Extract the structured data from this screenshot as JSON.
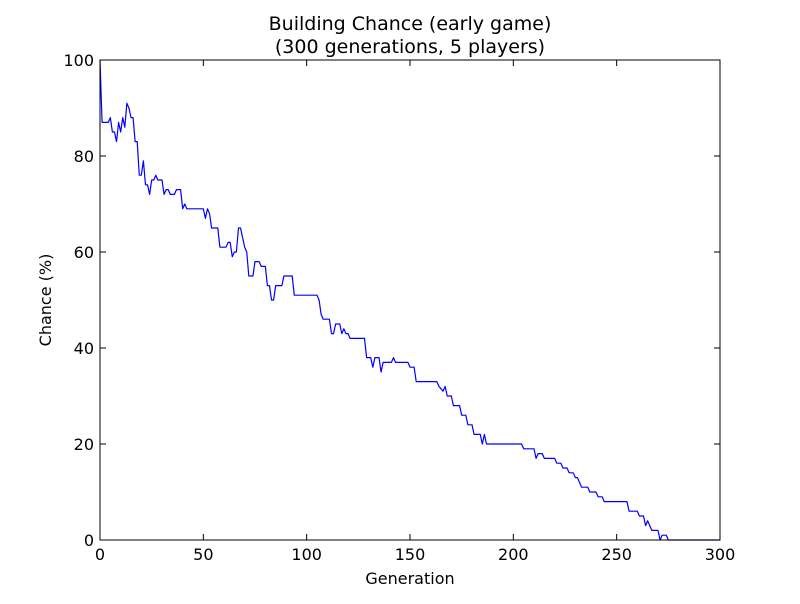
{
  "chart_data": {
    "type": "line",
    "title": "Building Chance (early game)",
    "subtitle": "(300 generations, 5 players)",
    "xlabel": "Generation",
    "ylabel": "Chance (%)",
    "xlim": [
      0,
      300
    ],
    "ylim": [
      0,
      100
    ],
    "xticks": [
      0,
      50,
      100,
      150,
      200,
      250,
      300
    ],
    "yticks": [
      0,
      20,
      40,
      60,
      80,
      100
    ],
    "grid": false,
    "legend": "none",
    "line_color": "#0000ff",
    "series": [
      {
        "points": [
          [
            0,
            100
          ],
          [
            1,
            87
          ],
          [
            4,
            87
          ],
          [
            5,
            88
          ],
          [
            6,
            85
          ],
          [
            7,
            85
          ],
          [
            8,
            83
          ],
          [
            9,
            87
          ],
          [
            10,
            85
          ],
          [
            11,
            88
          ],
          [
            12,
            86
          ],
          [
            13,
            91
          ],
          [
            14,
            90
          ],
          [
            15,
            88
          ],
          [
            16,
            88
          ],
          [
            17,
            83
          ],
          [
            18,
            83
          ],
          [
            19,
            76
          ],
          [
            20,
            76
          ],
          [
            21,
            79
          ],
          [
            22,
            74
          ],
          [
            23,
            74
          ],
          [
            24,
            72
          ],
          [
            25,
            75
          ],
          [
            26,
            75
          ],
          [
            27,
            76
          ],
          [
            28,
            75
          ],
          [
            30,
            75
          ],
          [
            31,
            72
          ],
          [
            32,
            73
          ],
          [
            33,
            73
          ],
          [
            34,
            72
          ],
          [
            36,
            72
          ],
          [
            37,
            73
          ],
          [
            39,
            73
          ],
          [
            40,
            69
          ],
          [
            41,
            70
          ],
          [
            42,
            69
          ],
          [
            50,
            69
          ],
          [
            51,
            67
          ],
          [
            52,
            69
          ],
          [
            53,
            68
          ],
          [
            54,
            65
          ],
          [
            57,
            65
          ],
          [
            58,
            61
          ],
          [
            61,
            61
          ],
          [
            62,
            62
          ],
          [
            63,
            62
          ],
          [
            64,
            59
          ],
          [
            65,
            60
          ],
          [
            66,
            60
          ],
          [
            67,
            65
          ],
          [
            68,
            65
          ],
          [
            69,
            63
          ],
          [
            70,
            61
          ],
          [
            71,
            60
          ],
          [
            72,
            55
          ],
          [
            74,
            55
          ],
          [
            75,
            58
          ],
          [
            77,
            58
          ],
          [
            78,
            57
          ],
          [
            80,
            57
          ],
          [
            81,
            53
          ],
          [
            82,
            53
          ],
          [
            83,
            50
          ],
          [
            84,
            50
          ],
          [
            85,
            53
          ],
          [
            88,
            53
          ],
          [
            89,
            55
          ],
          [
            93,
            55
          ],
          [
            94,
            51
          ],
          [
            105,
            51
          ],
          [
            106,
            50
          ],
          [
            107,
            47
          ],
          [
            108,
            46
          ],
          [
            111,
            46
          ],
          [
            112,
            43
          ],
          [
            113,
            43
          ],
          [
            114,
            45
          ],
          [
            116,
            45
          ],
          [
            117,
            43
          ],
          [
            118,
            44
          ],
          [
            119,
            43
          ],
          [
            120,
            43
          ],
          [
            121,
            42
          ],
          [
            128,
            42
          ],
          [
            129,
            38
          ],
          [
            131,
            38
          ],
          [
            132,
            36
          ],
          [
            133,
            38
          ],
          [
            135,
            38
          ],
          [
            136,
            35
          ],
          [
            137,
            37
          ],
          [
            141,
            37
          ],
          [
            142,
            38
          ],
          [
            143,
            37
          ],
          [
            149,
            37
          ],
          [
            150,
            36
          ],
          [
            152,
            36
          ],
          [
            153,
            33
          ],
          [
            163,
            33
          ],
          [
            164,
            32
          ],
          [
            166,
            31
          ],
          [
            167,
            32
          ],
          [
            168,
            30
          ],
          [
            170,
            30
          ],
          [
            171,
            28
          ],
          [
            174,
            28
          ],
          [
            175,
            26
          ],
          [
            177,
            26
          ],
          [
            178,
            24
          ],
          [
            180,
            24
          ],
          [
            181,
            22
          ],
          [
            184,
            22
          ],
          [
            185,
            20
          ],
          [
            186,
            22
          ],
          [
            187,
            20
          ],
          [
            204,
            20
          ],
          [
            205,
            19
          ],
          [
            210,
            19
          ],
          [
            211,
            17
          ],
          [
            212,
            18
          ],
          [
            214,
            18
          ],
          [
            215,
            17
          ],
          [
            220,
            17
          ],
          [
            221,
            16
          ],
          [
            223,
            16
          ],
          [
            224,
            15
          ],
          [
            226,
            15
          ],
          [
            227,
            14
          ],
          [
            229,
            14
          ],
          [
            230,
            13
          ],
          [
            231,
            13
          ],
          [
            232,
            12
          ],
          [
            233,
            11
          ],
          [
            236,
            11
          ],
          [
            237,
            10
          ],
          [
            240,
            10
          ],
          [
            241,
            9
          ],
          [
            243,
            9
          ],
          [
            244,
            8
          ],
          [
            255,
            8
          ],
          [
            256,
            6
          ],
          [
            260,
            6
          ],
          [
            261,
            5
          ],
          [
            263,
            5
          ],
          [
            264,
            3
          ],
          [
            265,
            4
          ],
          [
            266,
            3
          ],
          [
            267,
            2
          ],
          [
            270,
            2
          ],
          [
            271,
            0
          ],
          [
            272,
            1
          ],
          [
            274,
            1
          ],
          [
            275,
            0
          ],
          [
            300,
            0
          ]
        ]
      }
    ]
  }
}
